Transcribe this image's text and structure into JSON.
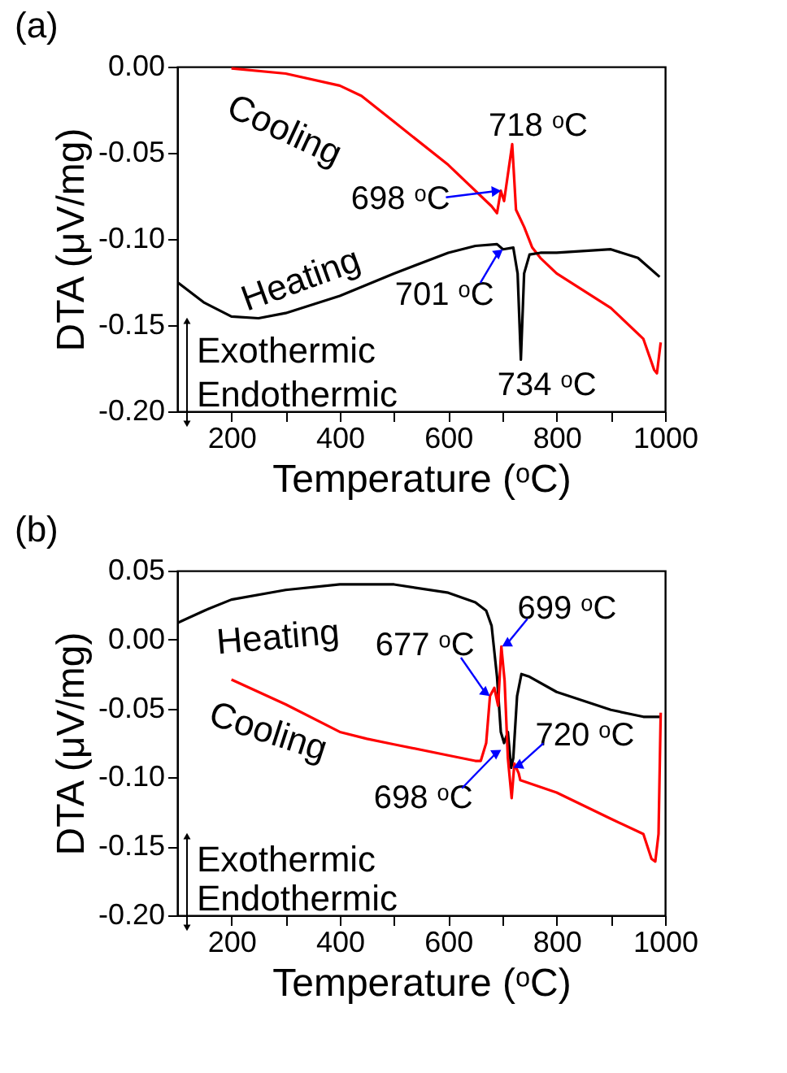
{
  "chart_data": [
    {
      "type": "line",
      "title": "(a)",
      "xlabel": "Temperature (ᵒC)",
      "ylabel": "DTA (μV/mg)",
      "xlim": [
        100,
        1000
      ],
      "xticks": [
        {
          "value": 200,
          "label": "200"
        },
        {
          "value": 300,
          "label": null
        },
        {
          "value": 400,
          "label": "400"
        },
        {
          "value": 500,
          "label": null
        },
        {
          "value": 600,
          "label": "600"
        },
        {
          "value": 700,
          "label": null
        },
        {
          "value": 800,
          "label": "800"
        },
        {
          "value": 900,
          "label": null
        },
        {
          "value": 1000,
          "label": "1000"
        }
      ],
      "ylim": [
        -0.2,
        0.0
      ],
      "yticks": [
        {
          "value": -0.2,
          "label": "-0.20"
        },
        {
          "value": -0.15,
          "label": "-0.15"
        },
        {
          "value": -0.1,
          "label": "-0.10"
        },
        {
          "value": -0.05,
          "label": "-0.05"
        },
        {
          "value": 0,
          "label": "0.00"
        }
      ],
      "grid": false,
      "legend": false,
      "series": [
        {
          "color": "#ff0000",
          "x": [
            200,
            300,
            400,
            440,
            500,
            600,
            680,
            690,
            697,
            703,
            718,
            725,
            740,
            755,
            770,
            800,
            900,
            960,
            980,
            985,
            992
          ],
          "values": [
            -0.001,
            -0.004,
            -0.011,
            -0.017,
            -0.032,
            -0.057,
            -0.081,
            -0.085,
            -0.072,
            -0.078,
            -0.045,
            -0.083,
            -0.093,
            -0.105,
            -0.111,
            -0.12,
            -0.14,
            -0.158,
            -0.176,
            -0.178,
            -0.16
          ]
        },
        {
          "color": "#000000",
          "x": [
            100,
            150,
            200,
            250,
            300,
            400,
            500,
            600,
            650,
            690,
            701,
            720,
            728,
            734,
            740,
            750,
            770,
            800,
            900,
            950,
            990
          ],
          "values": [
            -0.125,
            -0.137,
            -0.145,
            -0.146,
            -0.143,
            -0.133,
            -0.12,
            -0.108,
            -0.104,
            -0.103,
            -0.106,
            -0.105,
            -0.12,
            -0.17,
            -0.12,
            -0.109,
            -0.108,
            -0.108,
            -0.106,
            -0.111,
            -0.122
          ]
        }
      ],
      "annotations": [
        "Cooling",
        "Heating",
        {
          "text": "718 ᵒC",
          "x": 718,
          "y": -0.045
        },
        {
          "text": "698 ᵒC",
          "x": 698,
          "y": -0.072
        },
        {
          "text": "701 ᵒC",
          "x": 701,
          "y": -0.106
        },
        {
          "text": "734 ᵒC",
          "x": 734,
          "y": -0.17
        },
        "Exothermic",
        "Endothermic"
      ]
    },
    {
      "type": "line",
      "title": "(b)",
      "xlabel": "Temperature (ᵒC)",
      "ylabel": "DTA (μV/mg)",
      "xlim": [
        100,
        1000
      ],
      "xticks": [
        {
          "value": 200,
          "label": "200"
        },
        {
          "value": 300,
          "label": null
        },
        {
          "value": 400,
          "label": "400"
        },
        {
          "value": 500,
          "label": null
        },
        {
          "value": 600,
          "label": "600"
        },
        {
          "value": 700,
          "label": null
        },
        {
          "value": 800,
          "label": "800"
        },
        {
          "value": 900,
          "label": null
        },
        {
          "value": 1000,
          "label": "1000"
        }
      ],
      "ylim": [
        -0.2,
        0.05
      ],
      "yticks": [
        {
          "value": -0.2,
          "label": "-0.20"
        },
        {
          "value": -0.15,
          "label": "-0.15"
        },
        {
          "value": -0.1,
          "label": "-0.10"
        },
        {
          "value": -0.05,
          "label": "-0.05"
        },
        {
          "value": 0,
          "label": "0.00"
        },
        {
          "value": 0.05,
          "label": "0.05"
        }
      ],
      "grid": false,
      "legend": false,
      "series": [
        {
          "color": "#000000",
          "x": [
            100,
            150,
            200,
            300,
            400,
            500,
            600,
            650,
            670,
            680,
            690,
            697,
            703,
            710,
            716,
            720,
            727,
            735,
            750,
            800,
            900,
            960,
            990
          ],
          "values": [
            0.012,
            0.021,
            0.029,
            0.036,
            0.04,
            0.04,
            0.034,
            0.027,
            0.021,
            0.01,
            -0.027,
            -0.067,
            -0.075,
            -0.067,
            -0.093,
            -0.086,
            -0.041,
            -0.025,
            -0.027,
            -0.038,
            -0.051,
            -0.056,
            -0.056
          ]
        },
        {
          "color": "#ff0000",
          "x": [
            200,
            300,
            400,
            450,
            500,
            600,
            650,
            660,
            670,
            677,
            685,
            692,
            698,
            704,
            710,
            717,
            722,
            730,
            733,
            800,
            900,
            960,
            975,
            982,
            988,
            992
          ],
          "values": [
            -0.029,
            -0.047,
            -0.067,
            -0.072,
            -0.076,
            -0.084,
            -0.088,
            -0.088,
            -0.075,
            -0.041,
            -0.035,
            -0.048,
            -0.005,
            -0.03,
            -0.086,
            -0.115,
            -0.09,
            -0.097,
            -0.102,
            -0.111,
            -0.13,
            -0.141,
            -0.159,
            -0.161,
            -0.141,
            -0.053
          ]
        }
      ],
      "annotations": [
        "Heating",
        "Cooling",
        {
          "text": "699 ᵒC",
          "x": 699,
          "y": -0.005
        },
        {
          "text": "677 ᵒC",
          "x": 677,
          "y": -0.041
        },
        {
          "text": "698 ᵒC",
          "x": 698,
          "y": -0.08
        },
        {
          "text": "720 ᵒC",
          "x": 720,
          "y": -0.093
        },
        "Exothermic",
        "Endothermic"
      ]
    }
  ]
}
